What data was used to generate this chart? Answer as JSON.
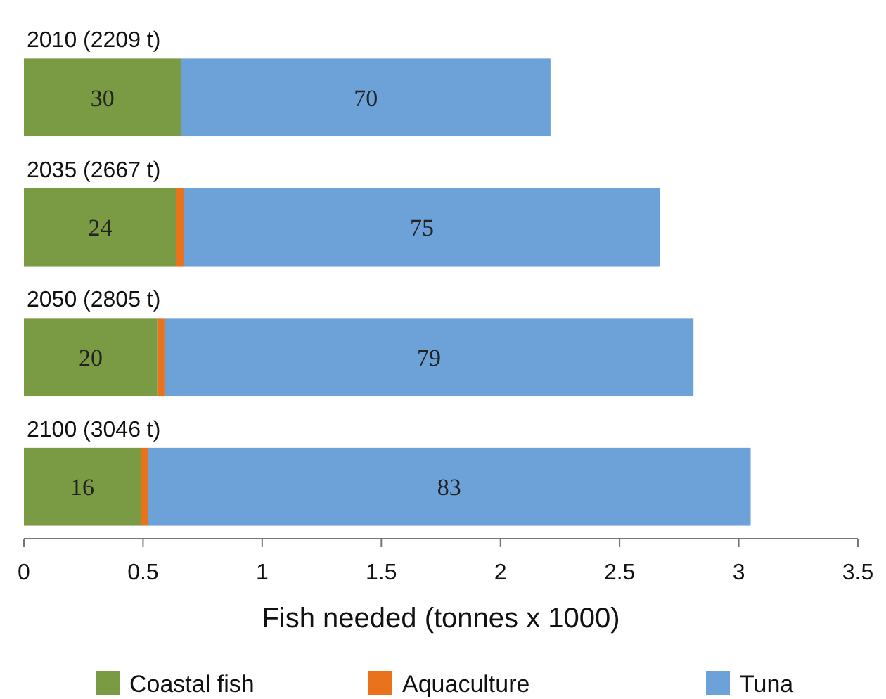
{
  "chart_data": {
    "type": "bar",
    "orientation": "horizontal",
    "stacked": true,
    "xlabel": "Fish needed (tonnes x 1000)",
    "categories": [
      "2010 (2209 t)",
      "2035 (2667 t)",
      "2050 (2805 t)",
      "2100 (3046 t)"
    ],
    "series": [
      {
        "name": "Coastal fish",
        "color": "#7a9a44",
        "values": [
          0.66,
          0.64,
          0.56,
          0.49
        ]
      },
      {
        "name": "Aquaculture",
        "color": "#e8731c",
        "values": [
          0,
          0.03,
          0.03,
          0.03
        ]
      },
      {
        "name": "Tuna",
        "color": "#6ca2d8",
        "values": [
          1.55,
          2.0,
          2.22,
          2.53
        ]
      }
    ],
    "annotations": [
      "30",
      "70",
      "24",
      "75",
      "20",
      "79",
      "16",
      "83"
    ],
    "xlim": [
      0,
      3.5
    ],
    "xticks": [
      0,
      0.5,
      1,
      1.5,
      2,
      2.5,
      3,
      3.5
    ],
    "grid": false,
    "legend": "bottom"
  }
}
